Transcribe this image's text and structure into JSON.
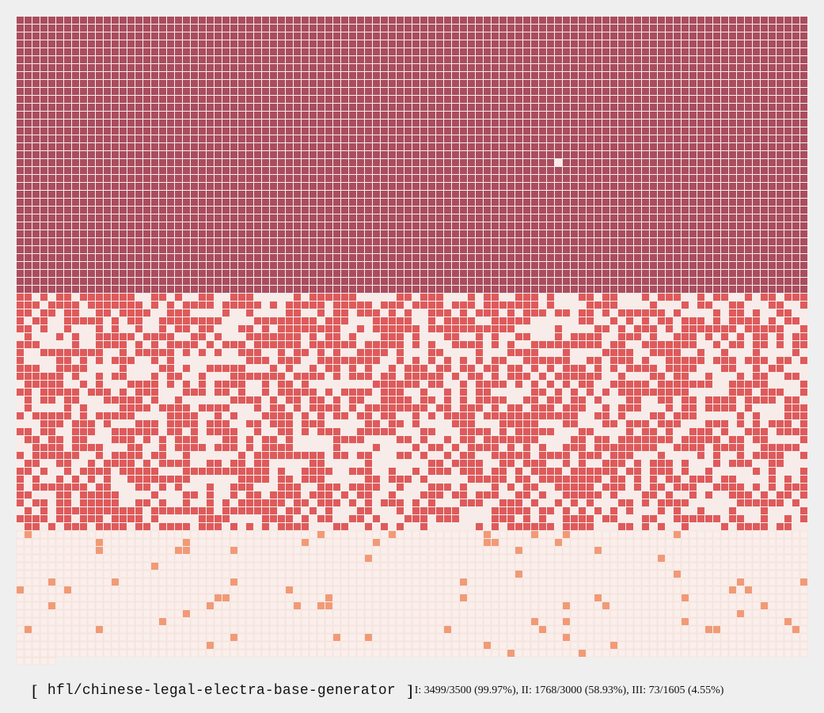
{
  "model": {
    "open_bracket": "[",
    "name": "hfl/chinese-legal-electra-base-generator",
    "close_bracket": "]"
  },
  "stats_text": "I: 3499/3500 (99.97%), II: 1768/3000 (58.93%), III: 73/1605 (4.55%)",
  "tiers": [
    {
      "label": "I",
      "found": 3499,
      "total": 3500,
      "percent": 99.97
    },
    {
      "label": "II",
      "found": 1768,
      "total": 3000,
      "percent": 58.93
    },
    {
      "label": "III",
      "found": 73,
      "total": 1605,
      "percent": 4.55
    }
  ],
  "grid": {
    "columns": 100,
    "cells_total": 8105,
    "colors": {
      "background": "#efefef",
      "tier1_found": "#ab4d5e",
      "tier1_missing": "#f9ebe8",
      "tier2_found": "#e05a5a",
      "tier2_missing": "#f9ebe8",
      "tier3_found": "#f29a76",
      "tier3_missing": "#fbefec",
      "tier3_missing_line": "#f6dcd6"
    }
  }
}
